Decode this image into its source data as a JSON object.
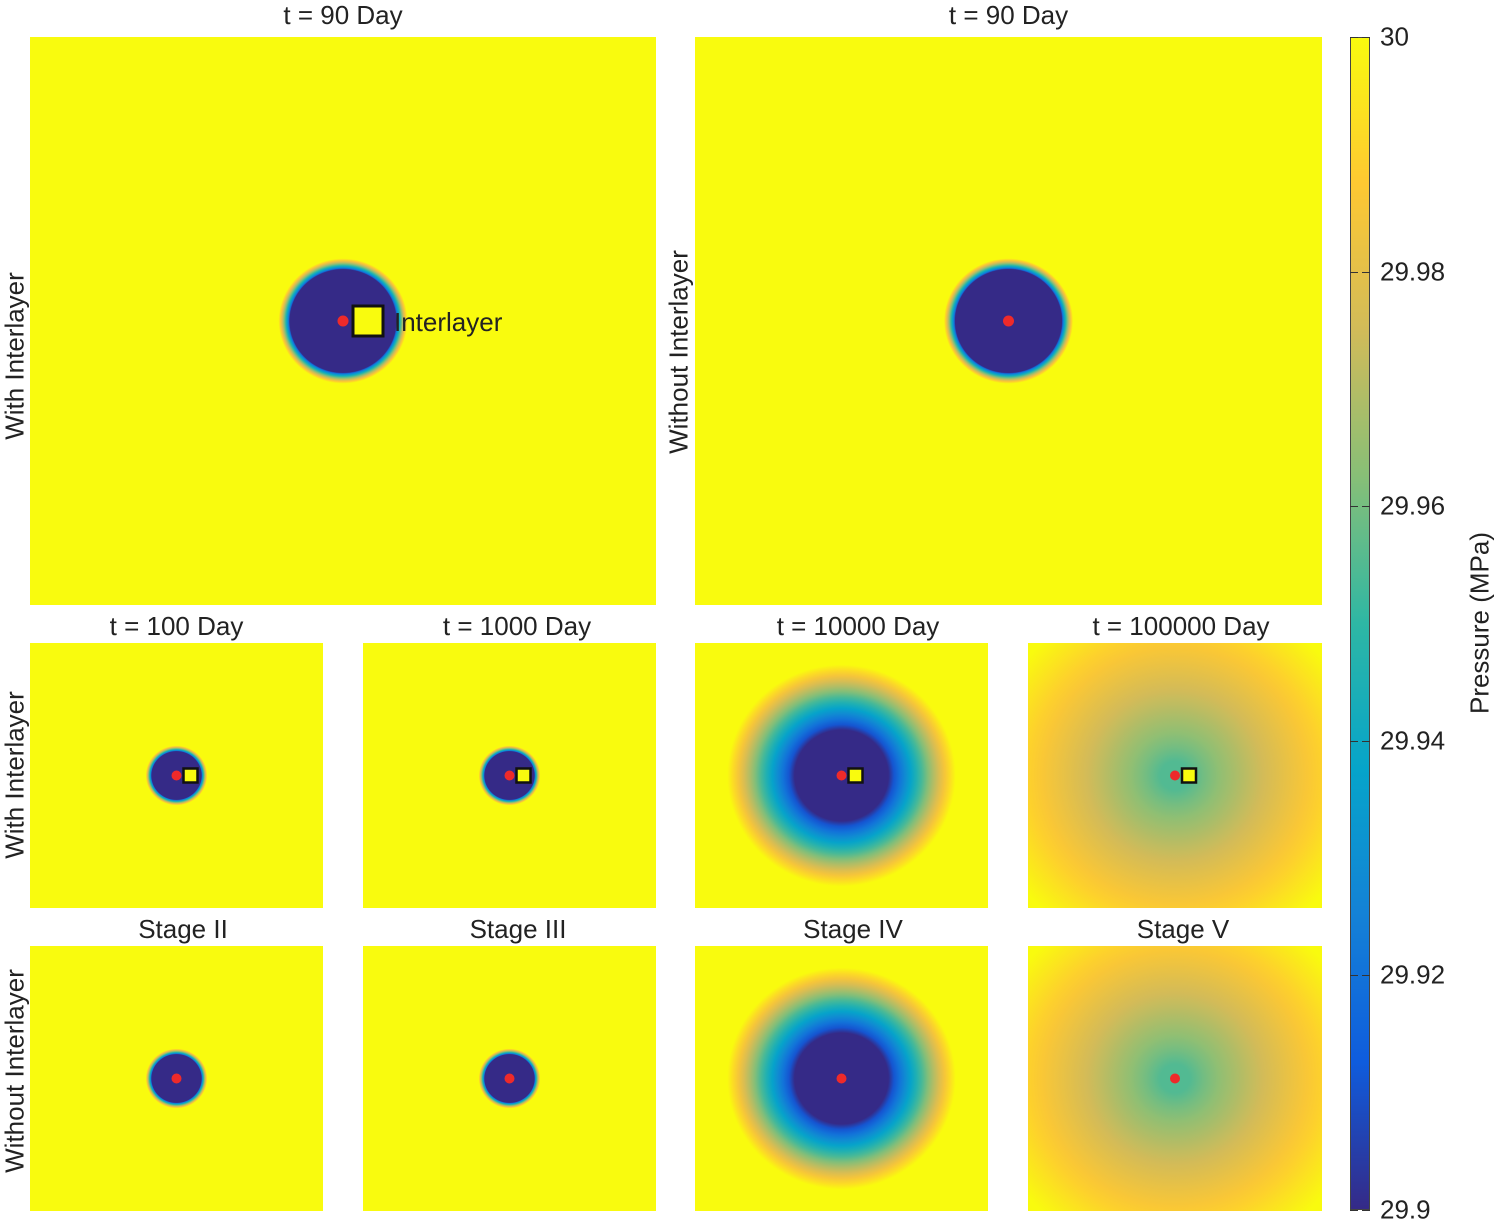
{
  "chart_data": {
    "type": "heatmap",
    "colormap": "parula",
    "colorbar": {
      "label": "Pressure (MPa)",
      "min": 29.9,
      "max": 30,
      "ticks": [
        "30",
        "29.98",
        "29.96",
        "29.94",
        "29.92",
        "29.9"
      ],
      "tick_values": [
        30,
        29.98,
        29.96,
        29.94,
        29.92,
        29.9
      ],
      "colors": [
        "#352a87",
        "#0f5cdd",
        "#1481d6",
        "#06a4ca",
        "#2eb7a4",
        "#87bf77",
        "#d1bb59",
        "#fec832",
        "#f9fb0e"
      ]
    },
    "annotation": "Interlayer",
    "panels": [
      {
        "id": "top-with",
        "title": "t = 90 Day",
        "interlayer": true,
        "min_pressure": 29.9,
        "depletion_radius": 0.085,
        "transition_width": 0.018,
        "halo": 0
      },
      {
        "id": "top-without",
        "title": "t = 90 Day",
        "interlayer": false,
        "min_pressure": 29.9,
        "depletion_radius": 0.085,
        "transition_width": 0.018,
        "halo": 0
      },
      {
        "id": "mid-1",
        "title": "t = 100 Day",
        "interlayer": true,
        "min_pressure": 29.9,
        "depletion_radius": 0.085,
        "transition_width": 0.02,
        "halo": 0
      },
      {
        "id": "mid-2",
        "title": "t = 1000 Day",
        "interlayer": true,
        "min_pressure": 29.9,
        "depletion_radius": 0.085,
        "transition_width": 0.02,
        "halo": 0
      },
      {
        "id": "mid-3",
        "title": "t = 10000 Day",
        "interlayer": true,
        "min_pressure": 29.9,
        "depletion_radius": 0.16,
        "transition_width": 0.05,
        "halo": 0.3
      },
      {
        "id": "mid-4",
        "title": "t = 100000 Day",
        "interlayer": true,
        "min_pressure": 29.955,
        "depletion_radius": 0.05,
        "transition_width": 0.3,
        "halo": 0.5
      },
      {
        "id": "bot-1",
        "title": "Stage II",
        "interlayer": false,
        "min_pressure": 29.9,
        "depletion_radius": 0.085,
        "transition_width": 0.02,
        "halo": 0
      },
      {
        "id": "bot-2",
        "title": "Stage III",
        "interlayer": false,
        "min_pressure": 29.9,
        "depletion_radius": 0.085,
        "transition_width": 0.02,
        "halo": 0
      },
      {
        "id": "bot-3",
        "title": "Stage IV",
        "interlayer": false,
        "min_pressure": 29.9,
        "depletion_radius": 0.16,
        "transition_width": 0.05,
        "halo": 0.3
      },
      {
        "id": "bot-4",
        "title": "Stage V",
        "interlayer": false,
        "min_pressure": 29.955,
        "depletion_radius": 0.05,
        "transition_width": 0.3,
        "halo": 0.5
      }
    ],
    "row_labels": {
      "top_left": "With Interlayer",
      "top_right": "Without Interlayer",
      "middle": "With Interlayer",
      "bottom": "Without Interlayer"
    }
  }
}
